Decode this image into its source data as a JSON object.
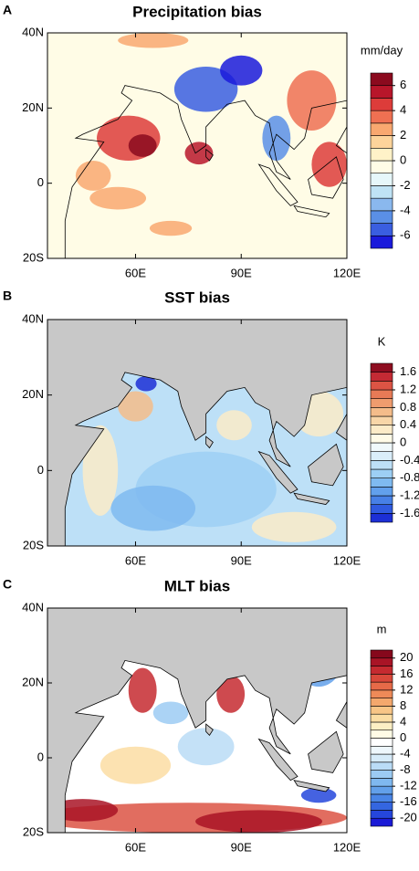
{
  "chart_data": [
    {
      "type": "contour-map",
      "panel_label": "A",
      "title": "Precipitation bias",
      "xlim": [
        35,
        120
      ],
      "ylim": [
        -20,
        40
      ],
      "xticks": [
        {
          "value": 60,
          "label": "60E"
        },
        {
          "value": 90,
          "label": "90E"
        },
        {
          "value": 120,
          "label": "120E"
        }
      ],
      "yticks": [
        {
          "value": 40,
          "label": "40N"
        },
        {
          "value": 20,
          "label": "20N"
        },
        0,
        {
          "value": -20,
          "label": "20S"
        }
      ],
      "land_fill": false,
      "colorbar": {
        "label": "mm/day",
        "lim": [
          -7,
          7
        ],
        "ticks": [
          6,
          4,
          2,
          0,
          -2,
          -4,
          -6
        ],
        "colors": [
          "#1a1adb",
          "#3a5ee0",
          "#5a8fe6",
          "#8ab8ee",
          "#bfe3f5",
          "#e6f7fa",
          "#fffce6",
          "#fff2c8",
          "#fdd49b",
          "#f9a870",
          "#ef7052",
          "#dd3c3a",
          "#b8162a",
          "#8b0a1e"
        ]
      }
    },
    {
      "type": "contour-map",
      "panel_label": "B",
      "title": "SST bias",
      "xlim": [
        35,
        120
      ],
      "ylim": [
        -20,
        40
      ],
      "xticks": [
        {
          "value": 60,
          "label": "60E"
        },
        {
          "value": 90,
          "label": "90E"
        },
        {
          "value": 120,
          "label": "120E"
        }
      ],
      "yticks": [
        {
          "value": 40,
          "label": "40N"
        },
        {
          "value": 20,
          "label": "20N"
        },
        0,
        {
          "value": -20,
          "label": "20S"
        }
      ],
      "land_fill": true,
      "colorbar": {
        "label": "K",
        "lim": [
          -1.8,
          1.8
        ],
        "ticks": [
          1.6,
          1.2,
          0.8,
          0.4,
          0,
          -0.4,
          -0.8,
          -1.2,
          -1.6
        ],
        "colors": [
          "#1c2fd6",
          "#2f5ae0",
          "#4780e6",
          "#62a0ec",
          "#7fbaf0",
          "#9dcff4",
          "#bde0f7",
          "#daeefa",
          "#f0f9fc",
          "#fffbe8",
          "#fcebc8",
          "#f8d6a8",
          "#f4bc8a",
          "#ef9c6e",
          "#e77a56",
          "#dc5444",
          "#c42a34",
          "#8e0d20"
        ]
      }
    },
    {
      "type": "contour-map",
      "panel_label": "C",
      "title": "MLT bias",
      "xlim": [
        35,
        120
      ],
      "ylim": [
        -20,
        40
      ],
      "xticks": [
        {
          "value": 60,
          "label": "60E"
        },
        {
          "value": 90,
          "label": "90E"
        },
        {
          "value": 120,
          "label": "120E"
        }
      ],
      "yticks": [
        {
          "value": 40,
          "label": "40N"
        },
        {
          "value": 20,
          "label": "20N"
        },
        0,
        {
          "value": -20,
          "label": "20S"
        }
      ],
      "land_fill": true,
      "colorbar": {
        "label": "m",
        "lim": [
          -22,
          22
        ],
        "ticks": [
          20,
          16,
          12,
          8,
          4,
          0,
          -4,
          -8,
          -12,
          -16,
          -20
        ],
        "colors": [
          "#1a1ad6",
          "#2546dc",
          "#3466e0",
          "#4985e6",
          "#62a0ea",
          "#7fb8ef",
          "#9ccbf3",
          "#badcf6",
          "#d6ebf9",
          "#eef7fc",
          "#ffffff",
          "#fffbe6",
          "#fdefc4",
          "#fbdda3",
          "#f8c586",
          "#f4a86d",
          "#ee8a58",
          "#e66a48",
          "#d9483a",
          "#c52a30",
          "#a91426",
          "#86081c"
        ]
      }
    }
  ]
}
